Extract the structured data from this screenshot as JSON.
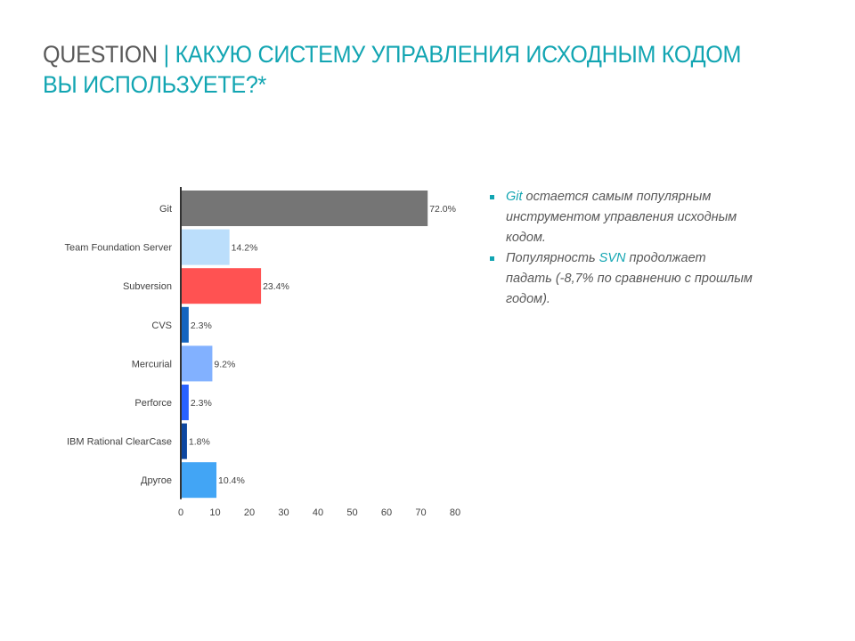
{
  "title": {
    "lead": "QUESTION",
    "separator": " | ",
    "text": "КАКУЮ СИСТЕМУ УПРАВЛЕНИЯ ИСХОДНЫМ КОДОМ ВЫ ИСПОЛЬЗУЕТЕ?*"
  },
  "colors": {
    "accent": "#12a5b2",
    "text": "#595959"
  },
  "bullets": [
    {
      "pre": "",
      "highlight": "Git",
      "post": " остается самым популярным инструментом управления исходным кодом."
    },
    {
      "pre": "Популярность ",
      "highlight": "SVN",
      "post": " продолжает падать (-8,7% по сравнению с прошлым годом)."
    }
  ],
  "chart_data": {
    "type": "bar",
    "orientation": "horizontal",
    "categories": [
      "Git",
      "Team Foundation Server",
      "Subversion",
      "CVS",
      "Mercurial",
      "Perforce",
      "IBM Rational ClearCase",
      "Другое"
    ],
    "values": [
      72.0,
      14.2,
      23.4,
      2.3,
      9.2,
      2.3,
      1.8,
      10.4
    ],
    "value_labels": [
      "72.0%",
      "14.2%",
      "23.4%",
      "2.3%",
      "9.2%",
      "2.3%",
      "1.8%",
      "10.4%"
    ],
    "colors": [
      "#757575",
      "#bbdefb",
      "#ff5252",
      "#1565c0",
      "#82b1ff",
      "#2962ff",
      "#0d47a1",
      "#42a5f5"
    ],
    "xlim": [
      0,
      80
    ],
    "xticks": [
      0,
      10,
      20,
      30,
      40,
      50,
      60,
      70,
      80
    ],
    "title": "",
    "xlabel": "",
    "ylabel": ""
  }
}
